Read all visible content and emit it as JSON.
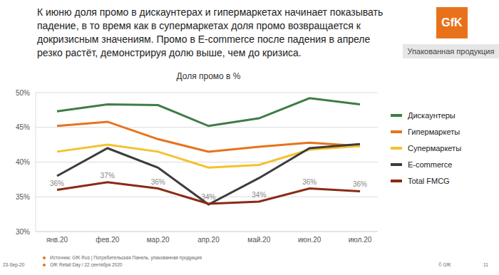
{
  "title": "К июню доля промо в дискаунтерах и гипермаркетах начинает показывать падение, в то время как в супермаркетах доля промо возвращается к докризисным значениям. Промо в E-commerce после падения в апреле резко растёт, демонстрируя долю выше, чем до кризиса.",
  "logo": "GfK",
  "tag": "Упакованная продукция",
  "chart_data": {
    "type": "line",
    "title": "Доля промо в %",
    "categories": [
      "янв.20",
      "фев.20",
      "мар.20",
      "апр.20",
      "май.20",
      "июн.20",
      "июл.20"
    ],
    "ylim": [
      30,
      50
    ],
    "yticks": [
      {
        "value": 30,
        "label": "30%"
      },
      {
        "value": 35,
        "label": "35%"
      },
      {
        "value": 40,
        "label": "40%"
      },
      {
        "value": 45,
        "label": "45%"
      },
      {
        "value": 50,
        "label": "50%"
      }
    ],
    "grid": true,
    "legend": "right",
    "series": [
      {
        "name": "Дискаунтеры",
        "color": "#3e7d45",
        "values": [
          47.3,
          48.3,
          48.2,
          45.2,
          46.3,
          49.2,
          48.3
        ]
      },
      {
        "name": "Гипермаркеты",
        "color": "#e8721c",
        "values": [
          45.2,
          45.8,
          43.3,
          41.5,
          42.2,
          42.8,
          42.3
        ]
      },
      {
        "name": "Супермаркеты",
        "color": "#f5c12e",
        "values": [
          41.5,
          42.5,
          41.5,
          39.2,
          39.6,
          41.8,
          42.3
        ]
      },
      {
        "name": "E-commerce",
        "color": "#3c3c3c",
        "values": [
          38.0,
          42.0,
          39.2,
          33.9,
          37.7,
          42.0,
          42.6
        ]
      },
      {
        "name": "Total FMCG",
        "color": "#8b2a14",
        "values": [
          36.0,
          37.1,
          36.2,
          34.0,
          34.3,
          36.2,
          35.8
        ],
        "data_labels": true,
        "value_labels": [
          "36%",
          "37%",
          "36%",
          "34%",
          "34%",
          "36%",
          "36%"
        ]
      }
    ]
  },
  "footnotes": [
    "Источник: GfK Rus | Потребительская Панель, упакованная продукция",
    "GfK Retail Day / 22 сентября 2020"
  ],
  "date": "23-Sep-20",
  "copyright": "© GfK",
  "page": "11"
}
